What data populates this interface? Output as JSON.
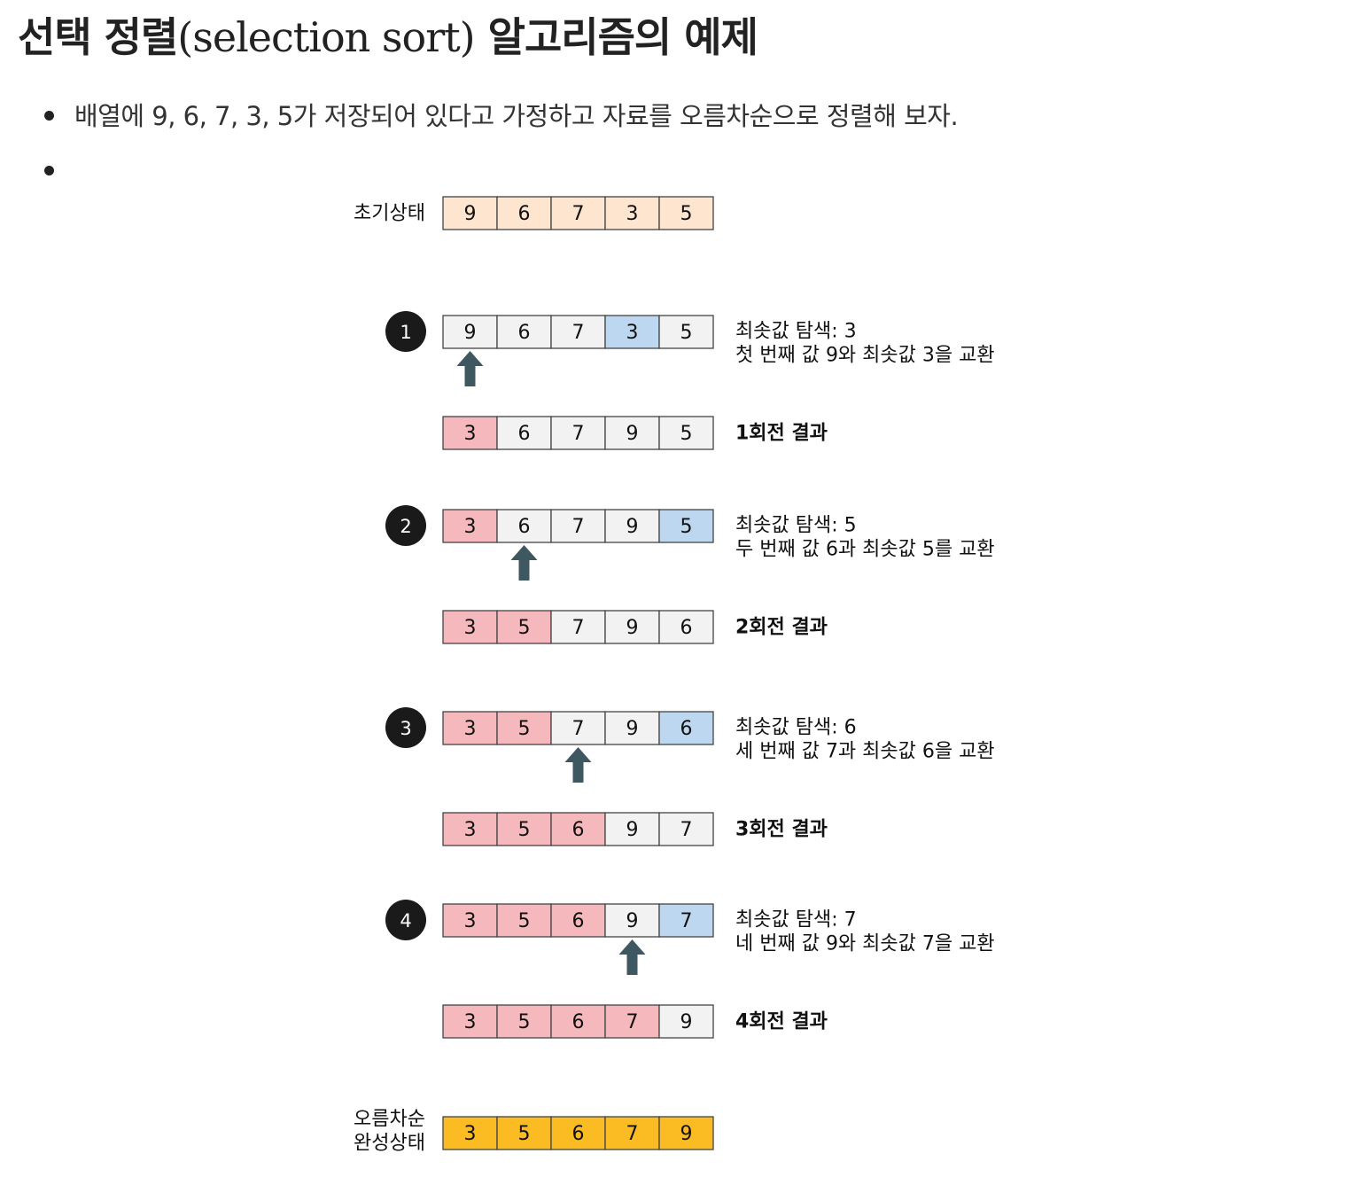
{
  "page": {
    "title_main": "선택 정렬",
    "title_paren": "(selection sort)",
    "title_tail": "알고리즘의 예제",
    "intro": "배열에 9, 6, 7, 3, 5가 저장되어 있다고 가정하고 자료를 오름차순으로 정렬해 보자."
  },
  "colors": {
    "initial": "#fde5cf",
    "plain": "#f2f2f2",
    "sorted": "#f5b8bc",
    "min": "#bcd7ef",
    "final": "#fbbb22",
    "arrow": "#3f5760",
    "badge": "#1a1a1a",
    "border": "#444444"
  },
  "diagram": {
    "initial": {
      "label": "초기상태",
      "values": [
        9,
        6,
        7,
        3,
        5
      ]
    },
    "passes": [
      {
        "number": "1",
        "before": [
          9,
          6,
          7,
          3,
          5
        ],
        "sorted_count": 0,
        "current_index": 0,
        "min_index": 3,
        "desc1": "최솟값 탐색: 3",
        "desc2": "첫 번째 값 9와 최솟값 3을 교환",
        "after": [
          3,
          6,
          7,
          9,
          5
        ],
        "result_label": "1회전 결과"
      },
      {
        "number": "2",
        "before": [
          3,
          6,
          7,
          9,
          5
        ],
        "sorted_count": 1,
        "current_index": 1,
        "min_index": 4,
        "desc1": "최솟값 탐색: 5",
        "desc2": "두 번째 값 6과 최솟값 5를 교환",
        "after": [
          3,
          5,
          7,
          9,
          6
        ],
        "result_label": "2회전 결과"
      },
      {
        "number": "3",
        "before": [
          3,
          5,
          7,
          9,
          6
        ],
        "sorted_count": 2,
        "current_index": 2,
        "min_index": 4,
        "desc1": "최솟값 탐색: 6",
        "desc2": "세 번째 값 7과 최솟값 6을 교환",
        "after": [
          3,
          5,
          6,
          9,
          7
        ],
        "result_label": "3회전 결과"
      },
      {
        "number": "4",
        "before": [
          3,
          5,
          6,
          9,
          7
        ],
        "sorted_count": 3,
        "current_index": 3,
        "min_index": 4,
        "desc1": "최솟값 탐색: 7",
        "desc2": "네 번째 값 9와 최솟값 7을 교환",
        "after": [
          3,
          5,
          6,
          7,
          9
        ],
        "result_label": "4회전 결과"
      }
    ],
    "final": {
      "label_line1": "오름차순",
      "label_line2": "완성상태",
      "values": [
        3,
        5,
        6,
        7,
        9
      ]
    }
  }
}
